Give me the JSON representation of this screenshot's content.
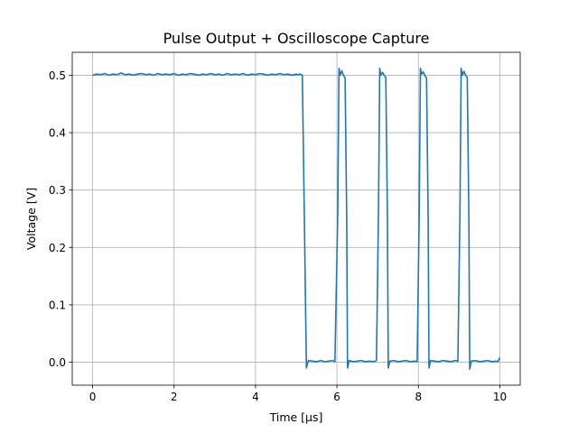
{
  "chart_data": {
    "type": "line",
    "title": "Pulse Output + Oscilloscope Capture",
    "xlabel": "Time [μs]",
    "ylabel": "Voltage [V]",
    "xlim": [
      -0.5,
      10.5
    ],
    "ylim": [
      -0.04,
      0.54
    ],
    "x_ticks": [
      0,
      2,
      4,
      6,
      8,
      10
    ],
    "x_tick_labels": [
      "0",
      "2",
      "4",
      "6",
      "8",
      "10"
    ],
    "y_ticks": [
      0.0,
      0.1,
      0.2,
      0.3,
      0.4,
      0.5
    ],
    "y_tick_labels": [
      "0.0",
      "0.1",
      "0.2",
      "0.3",
      "0.4",
      "0.5"
    ],
    "grid": true,
    "legend": "none",
    "series": [
      {
        "color": "#1f77b4",
        "points": [
          [
            0.0,
            0.5
          ],
          [
            0.1,
            0.502
          ],
          [
            0.2,
            0.501
          ],
          [
            0.3,
            0.503
          ],
          [
            0.4,
            0.5
          ],
          [
            0.5,
            0.502
          ],
          [
            0.6,
            0.501
          ],
          [
            0.7,
            0.504
          ],
          [
            0.8,
            0.501
          ],
          [
            0.9,
            0.502
          ],
          [
            1.0,
            0.5
          ],
          [
            1.1,
            0.502
          ],
          [
            1.2,
            0.503
          ],
          [
            1.3,
            0.501
          ],
          [
            1.4,
            0.502
          ],
          [
            1.5,
            0.5
          ],
          [
            1.6,
            0.503
          ],
          [
            1.7,
            0.501
          ],
          [
            1.8,
            0.502
          ],
          [
            1.9,
            0.501
          ],
          [
            2.0,
            0.503
          ],
          [
            2.1,
            0.5
          ],
          [
            2.2,
            0.502
          ],
          [
            2.3,
            0.501
          ],
          [
            2.4,
            0.503
          ],
          [
            2.5,
            0.502
          ],
          [
            2.6,
            0.5
          ],
          [
            2.7,
            0.502
          ],
          [
            2.8,
            0.501
          ],
          [
            2.9,
            0.503
          ],
          [
            3.0,
            0.501
          ],
          [
            3.1,
            0.502
          ],
          [
            3.2,
            0.5
          ],
          [
            3.3,
            0.503
          ],
          [
            3.4,
            0.501
          ],
          [
            3.5,
            0.502
          ],
          [
            3.6,
            0.501
          ],
          [
            3.7,
            0.503
          ],
          [
            3.8,
            0.5
          ],
          [
            3.9,
            0.502
          ],
          [
            4.0,
            0.501
          ],
          [
            4.1,
            0.503
          ],
          [
            4.2,
            0.502
          ],
          [
            4.3,
            0.5
          ],
          [
            4.4,
            0.502
          ],
          [
            4.5,
            0.501
          ],
          [
            4.6,
            0.503
          ],
          [
            4.7,
            0.501
          ],
          [
            4.8,
            0.502
          ],
          [
            4.9,
            0.5
          ],
          [
            5.0,
            0.502
          ],
          [
            5.05,
            0.501
          ],
          [
            5.1,
            0.502
          ],
          [
            5.15,
            0.5
          ],
          [
            5.2,
            0.25
          ],
          [
            5.25,
            -0.01
          ],
          [
            5.3,
            0.003
          ],
          [
            5.4,
            0.002
          ],
          [
            5.5,
            0.001
          ],
          [
            5.6,
            0.003
          ],
          [
            5.7,
            0.001
          ],
          [
            5.8,
            0.002
          ],
          [
            5.9,
            0.003
          ],
          [
            5.95,
            0.001
          ],
          [
            6.02,
            0.26
          ],
          [
            6.05,
            0.512
          ],
          [
            6.08,
            0.5
          ],
          [
            6.12,
            0.508
          ],
          [
            6.16,
            0.5
          ],
          [
            6.2,
            0.495
          ],
          [
            6.24,
            0.25
          ],
          [
            6.26,
            -0.01
          ],
          [
            6.3,
            0.003
          ],
          [
            6.4,
            0.001
          ],
          [
            6.5,
            0.002
          ],
          [
            6.6,
            0.003
          ],
          [
            6.7,
            0.001
          ],
          [
            6.8,
            0.002
          ],
          [
            6.9,
            0.001
          ],
          [
            6.97,
            0.003
          ],
          [
            7.02,
            0.26
          ],
          [
            7.05,
            0.512
          ],
          [
            7.08,
            0.5
          ],
          [
            7.12,
            0.505
          ],
          [
            7.16,
            0.5
          ],
          [
            7.2,
            0.496
          ],
          [
            7.24,
            0.25
          ],
          [
            7.26,
            -0.01
          ],
          [
            7.3,
            0.002
          ],
          [
            7.4,
            0.003
          ],
          [
            7.5,
            0.001
          ],
          [
            7.6,
            0.002
          ],
          [
            7.7,
            0.003
          ],
          [
            7.8,
            0.001
          ],
          [
            7.9,
            0.002
          ],
          [
            7.97,
            0.001
          ],
          [
            8.02,
            0.26
          ],
          [
            8.05,
            0.512
          ],
          [
            8.08,
            0.502
          ],
          [
            8.12,
            0.506
          ],
          [
            8.16,
            0.499
          ],
          [
            8.2,
            0.495
          ],
          [
            8.24,
            0.25
          ],
          [
            8.26,
            -0.01
          ],
          [
            8.3,
            0.003
          ],
          [
            8.4,
            0.002
          ],
          [
            8.5,
            0.001
          ],
          [
            8.6,
            0.003
          ],
          [
            8.7,
            0.002
          ],
          [
            8.8,
            0.001
          ],
          [
            8.9,
            0.003
          ],
          [
            8.97,
            0.002
          ],
          [
            9.02,
            0.26
          ],
          [
            9.05,
            0.512
          ],
          [
            9.08,
            0.5
          ],
          [
            9.12,
            0.507
          ],
          [
            9.16,
            0.5
          ],
          [
            9.2,
            0.496
          ],
          [
            9.24,
            0.25
          ],
          [
            9.26,
            -0.012
          ],
          [
            9.3,
            0.002
          ],
          [
            9.4,
            0.003
          ],
          [
            9.5,
            0.001
          ],
          [
            9.6,
            0.002
          ],
          [
            9.7,
            0.003
          ],
          [
            9.8,
            0.001
          ],
          [
            9.9,
            0.002
          ],
          [
            9.95,
            0.001
          ],
          [
            10.0,
            0.008
          ]
        ]
      }
    ]
  }
}
